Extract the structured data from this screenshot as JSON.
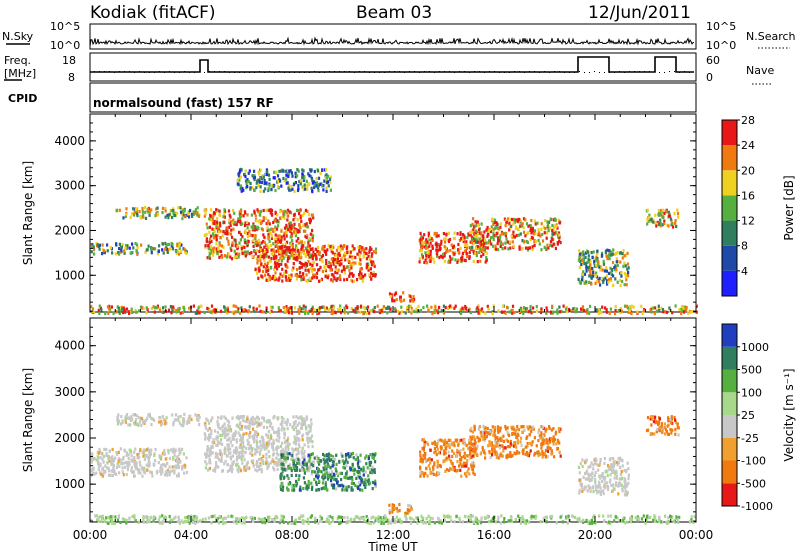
{
  "header": {
    "station": "Kodiak (fitACF)",
    "beam": "Beam 03",
    "date": "12/Jun/2011"
  },
  "top_panels": {
    "nsky_label": "N.Sky",
    "nsky_scale_top": "10^5",
    "nsky_scale_bottom": "10^0",
    "nsearch_label": "N.Search",
    "nsearch_scale_top": "10^5",
    "nsearch_scale_bottom": "10^0",
    "freq_label": "Freq.",
    "freq_unit": "[MHz]",
    "freq_ticks": [
      "18",
      "8"
    ],
    "nave_label": "Nave",
    "nave_ticks": [
      "60",
      "0"
    ],
    "cpid_label": "CPID",
    "cpid_text": "normalsound (fast) 157 RF"
  },
  "chart_data": [
    {
      "type": "heatmap",
      "panel": "power",
      "ylabel": "Slant Range [km]",
      "xlabel": "",
      "x_ticks": [
        "00:00",
        "04:00",
        "08:00",
        "12:00",
        "16:00",
        "20:00",
        "00:00"
      ],
      "y_ticks": [
        "1000",
        "2000",
        "3000",
        "4000"
      ],
      "ylim": [
        180,
        4600
      ],
      "xlim_hours": [
        0,
        24
      ],
      "colorbar": {
        "label": "Power [dB]",
        "ticks": [
          "4",
          "8",
          "12",
          "16",
          "20",
          "24",
          "28"
        ],
        "range": [
          0,
          30
        ],
        "colors": [
          "#1f1fff",
          "#1f4aa8",
          "#2f7f5f",
          "#55b040",
          "#f0d020",
          "#f07a10",
          "#e81818"
        ]
      },
      "echo_regions": [
        {
          "t": [
            1.0,
            4.3
          ],
          "r": [
            2300,
            2550
          ],
          "level": 0.55
        },
        {
          "t": [
            0.0,
            3.8
          ],
          "r": [
            1500,
            1750
          ],
          "level": 0.45
        },
        {
          "t": [
            4.5,
            8.8
          ],
          "r": [
            1400,
            2500
          ],
          "level": 0.8
        },
        {
          "t": [
            6.5,
            11.3
          ],
          "r": [
            900,
            1700
          ],
          "level": 0.9
        },
        {
          "t": [
            5.8,
            9.5
          ],
          "r": [
            2900,
            3400
          ],
          "level": 0.35
        },
        {
          "t": [
            13.0,
            15.7
          ],
          "r": [
            1300,
            2000
          ],
          "level": 0.85
        },
        {
          "t": [
            15.0,
            18.6
          ],
          "r": [
            1600,
            2300
          ],
          "level": 0.75
        },
        {
          "t": [
            19.3,
            21.3
          ],
          "r": [
            800,
            1600
          ],
          "level": 0.5
        },
        {
          "t": [
            22.0,
            23.3
          ],
          "r": [
            2100,
            2500
          ],
          "level": 0.6
        },
        {
          "t": [
            11.8,
            12.8
          ],
          "r": [
            450,
            650
          ],
          "level": 0.95
        },
        {
          "t": [
            0.0,
            24.0
          ],
          "r": [
            180,
            350
          ],
          "level": 0.7
        }
      ]
    },
    {
      "type": "heatmap",
      "panel": "velocity",
      "ylabel": "Slant Range [km]",
      "xlabel": "Time UT",
      "x_ticks": [
        "00:00",
        "04:00",
        "08:00",
        "12:00",
        "16:00",
        "20:00",
        "00:00"
      ],
      "y_ticks": [
        "1000",
        "2000",
        "3000",
        "4000"
      ],
      "ylim": [
        180,
        4600
      ],
      "xlim_hours": [
        0,
        24
      ],
      "colorbar": {
        "label": "Velocity [m s⁻¹]",
        "ticks": [
          "1000",
          "500",
          "100",
          "25",
          "-25",
          "-100",
          "-500",
          "-1000"
        ],
        "colors": [
          "#1f3fbf",
          "#2f7f5f",
          "#55b040",
          "#a8d88a",
          "#c8c8c8",
          "#f0a030",
          "#f07a10",
          "#e81818"
        ]
      },
      "echo_regions": [
        {
          "t": [
            1.0,
            4.3
          ],
          "r": [
            2300,
            2550
          ],
          "vel": "ground"
        },
        {
          "t": [
            0.0,
            3.8
          ],
          "r": [
            1200,
            1800
          ],
          "vel": "ground"
        },
        {
          "t": [
            4.5,
            8.8
          ],
          "r": [
            1300,
            2500
          ],
          "vel": "ground"
        },
        {
          "t": [
            7.5,
            11.3
          ],
          "r": [
            900,
            1700
          ],
          "vel": "positive"
        },
        {
          "t": [
            13.0,
            15.2
          ],
          "r": [
            1200,
            2000
          ],
          "vel": "negative"
        },
        {
          "t": [
            15.0,
            18.6
          ],
          "r": [
            1600,
            2300
          ],
          "vel": "negative"
        },
        {
          "t": [
            19.3,
            21.3
          ],
          "r": [
            800,
            1600
          ],
          "vel": "ground"
        },
        {
          "t": [
            22.0,
            23.3
          ],
          "r": [
            2100,
            2500
          ],
          "vel": "negative"
        },
        {
          "t": [
            11.8,
            12.8
          ],
          "r": [
            400,
            600
          ],
          "vel": "negative"
        },
        {
          "t": [
            0.0,
            24.0
          ],
          "r": [
            180,
            350
          ],
          "vel": "ground-green"
        }
      ]
    }
  ]
}
